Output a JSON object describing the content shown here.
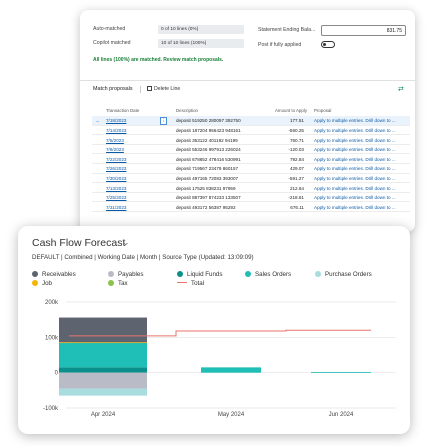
{
  "recon": {
    "auto_matched_label": "Auto-matched",
    "auto_matched_value": "0 of 10 lines (0%)",
    "copilot_matched_label": "Copilot matched",
    "copilot_matched_value": "10 of 10 lines (100%)",
    "statement_label": "Statement Ending Bala...",
    "statement_value": "831.75",
    "post_label": "Post if fully applied",
    "status_message": "All lines (100%) are matched. Review match proposals.",
    "match_title": "Match proposals",
    "delete_label": "Delete Line",
    "share_icon": "share-icon",
    "columns": [
      "Transaction Date",
      "Description",
      "Amount to Apply",
      "Proposal"
    ],
    "rows": [
      {
        "date": "7/18/2023",
        "desc": "deposit 519250 280097 392750",
        "amount": "177.51",
        "proposal": "Apply to multiple entries. Drill down to ..."
      },
      {
        "date": "7/14/2023",
        "desc": "deposit 187204 956423 948161",
        "amount": "-560.25",
        "proposal": "Apply to multiple entries. Drill down to ..."
      },
      {
        "date": "7/5/2023",
        "desc": "deposit 353122 401192 94199",
        "amount": "760.71",
        "proposal": "Apply to multiple entries. Drill down to ..."
      },
      {
        "date": "7/8/2023",
        "desc": "deposit 553246 997913 226024",
        "amount": "-120.03",
        "proposal": "Apply to multiple entries. Drill down to ..."
      },
      {
        "date": "7/22/2023",
        "desc": "deposit 678652 478416 530991",
        "amount": "792.84",
        "proposal": "Apply to multiple entries. Drill down to ..."
      },
      {
        "date": "7/26/2023",
        "desc": "deposit 719567 23479 860157",
        "amount": "429.07",
        "proposal": "Apply to multiple entries. Drill down to ..."
      },
      {
        "date": "7/30/2023",
        "desc": "deposit 497165 72083 393007",
        "amount": "-591.27",
        "proposal": "Apply to multiple entries. Drill down to ..."
      },
      {
        "date": "7/13/2023",
        "desc": "deposit 17525 838231 97959",
        "amount": "212.64",
        "proposal": "Apply to multiple entries. Drill down to ..."
      },
      {
        "date": "7/25/2023",
        "desc": "deposit 887397 874233 133507",
        "amount": "-218.61",
        "proposal": "Apply to multiple entries. Drill down to ..."
      },
      {
        "date": "7/31/2023",
        "desc": "deposit 493172 56387 95292",
        "amount": "676.11",
        "proposal": "Apply to multiple entries. Drill down to ..."
      }
    ]
  },
  "cashflow": {
    "title": "Cash Flow Forecast",
    "subtitle": "DEFAULT | Combined | Working Date | Month | Source Type (Updated: 13:09:09)",
    "legend": [
      {
        "label": "Receivables",
        "color": "#5d6470",
        "kind": "dot"
      },
      {
        "label": "Payables",
        "color": "#b9bcc6",
        "kind": "dot"
      },
      {
        "label": "Liquid Funds",
        "color": "#0a8f8a",
        "kind": "dot"
      },
      {
        "label": "Sales Orders",
        "color": "#1fbfb8",
        "kind": "dot"
      },
      {
        "label": "Purchase Orders",
        "color": "#a8dcdf",
        "kind": "dot"
      },
      {
        "label": "Job",
        "color": "#f2b705",
        "kind": "dot"
      },
      {
        "label": "Tax",
        "color": "#8bc34a",
        "kind": "dot"
      },
      {
        "label": "Total",
        "color": "#e8736b",
        "kind": "line"
      }
    ]
  },
  "chart_data": {
    "type": "bar",
    "categories": [
      "Apr 2024",
      "May 2024",
      "Jun 2024"
    ],
    "ylim": [
      -100000,
      200000
    ],
    "ytick_labels": [
      "200k",
      "100k",
      "0",
      "-100k"
    ],
    "series": [
      {
        "name": "Liquid Funds",
        "values": [
          15000,
          0,
          0
        ]
      },
      {
        "name": "Sales Orders",
        "values": [
          70000,
          15000,
          2000
        ]
      },
      {
        "name": "Job",
        "values": [
          1000,
          0,
          0
        ]
      },
      {
        "name": "Receivables",
        "values": [
          70000,
          0,
          0
        ]
      },
      {
        "name": "Tax",
        "values": [
          0,
          0,
          0
        ]
      },
      {
        "name": "Payables",
        "values": [
          -45000,
          0,
          0
        ]
      },
      {
        "name": "Purchase Orders",
        "values": [
          -20000,
          0,
          0
        ]
      }
    ],
    "total": [
      104000,
      118000,
      120000
    ],
    "grid": true,
    "legend": "top"
  }
}
